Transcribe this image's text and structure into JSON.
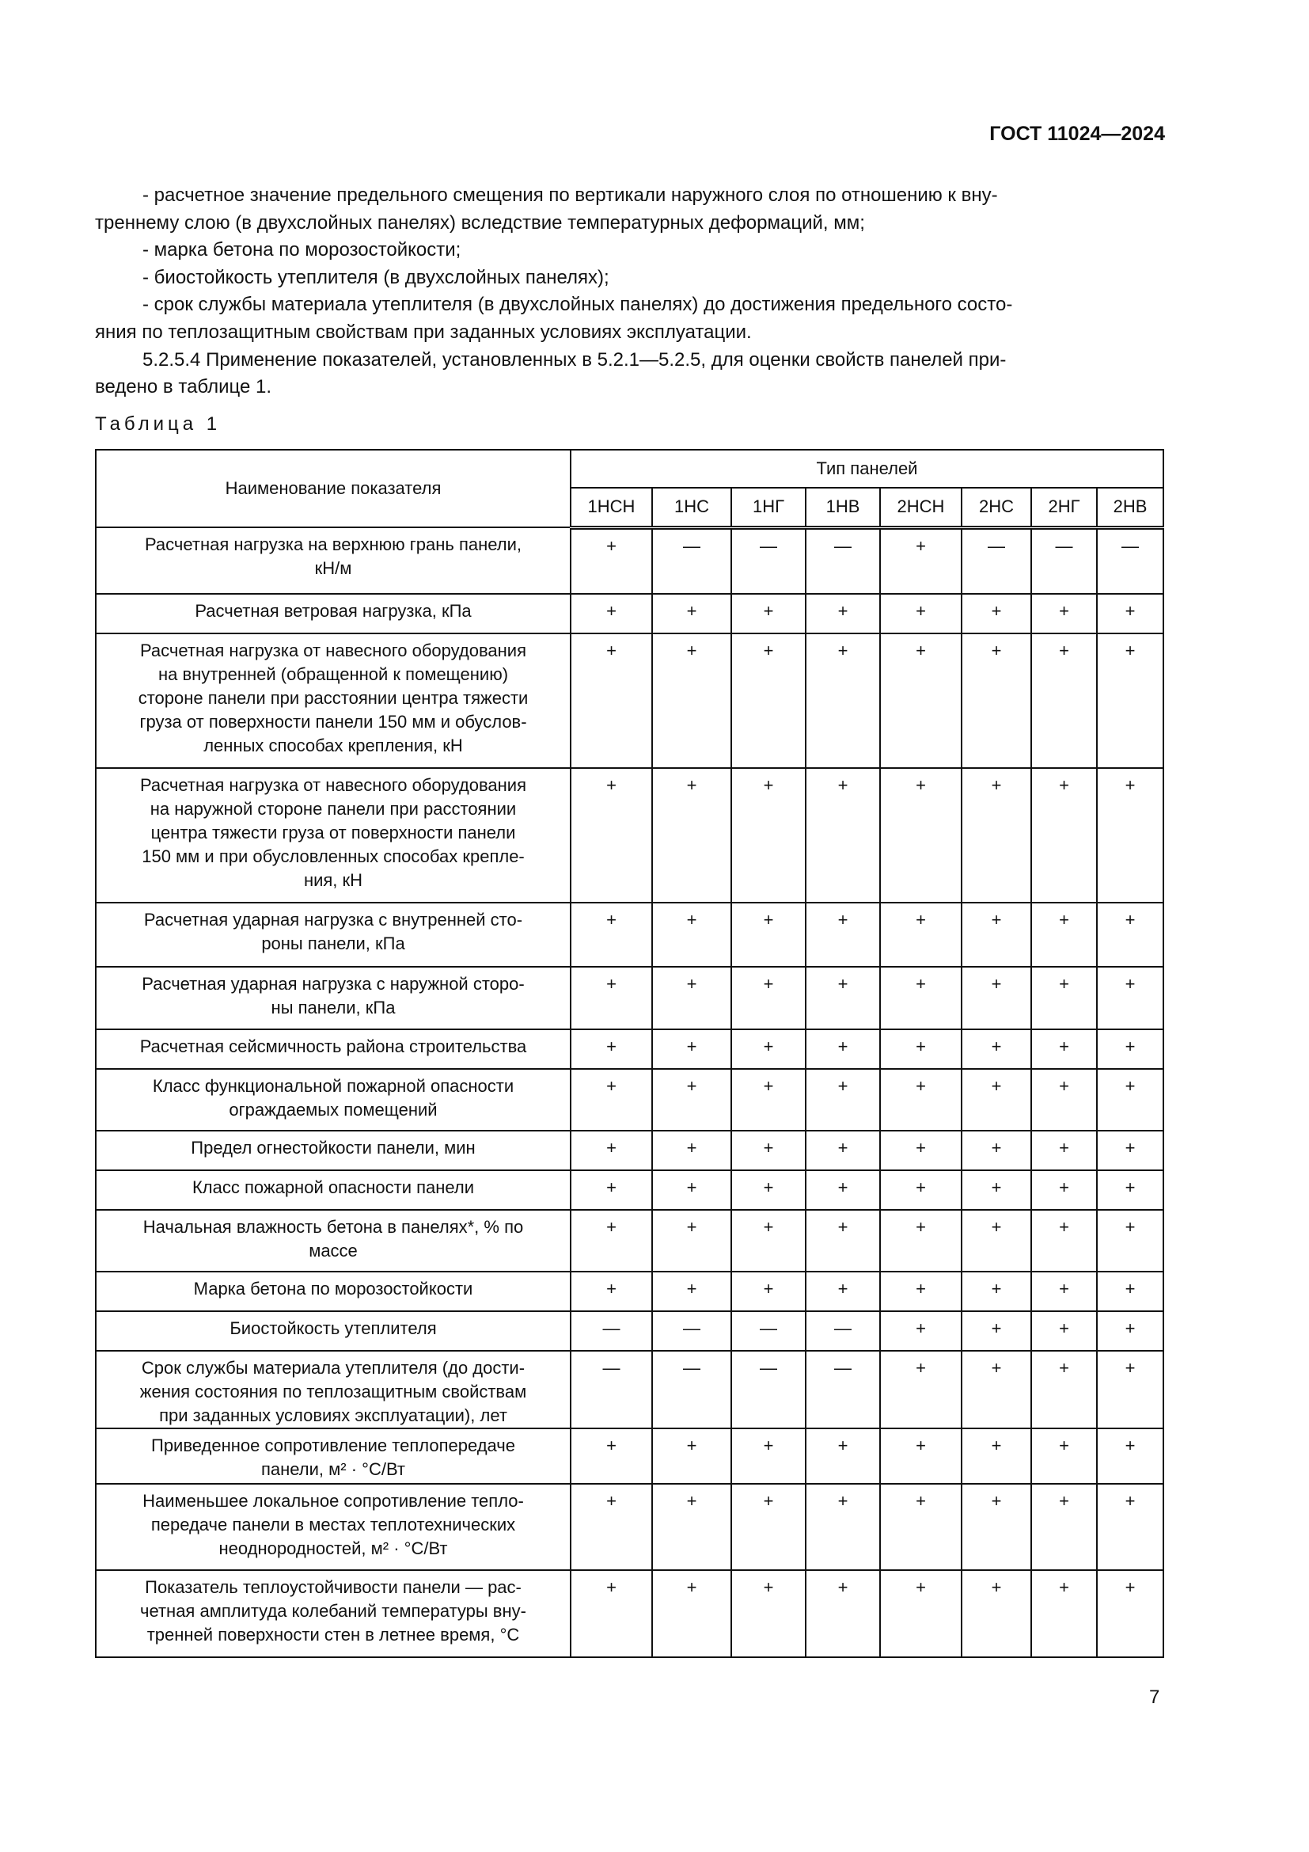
{
  "header": {
    "doc_id": "ГОСТ 11024—2024"
  },
  "paragraphs": [
    "- расчетное значение предельного смещения по вертикали наружного слоя по отношению к вну-\nтреннему слою (в двухслойных панелях) вследствие температурных деформаций, мм;",
    "- марка бетона по морозостойкости;",
    "- биостойкость утеплителя (в двухслойных панелях);",
    "- срок службы материала утеплителя (в двухслойных панелях) до достижения предельного состо-\nяния по теплозащитным свойствам при заданных условиях эксплуатации.",
    "5.2.5.4 Применение показателей, установленных в 5.2.1—5.2.5, для оценки свойств панелей при-\nведено в таблице 1."
  ],
  "table": {
    "caption": "Таблица 1",
    "col_header_name": "Наименование показателя",
    "col_header_group": "Тип панелей",
    "types": [
      "1НСН",
      "1НС",
      "1НГ",
      "1НВ",
      "2НСН",
      "2НС",
      "2НГ",
      "2НВ"
    ],
    "rows": [
      {
        "name": "Расчетная нагрузка на верхнюю грань панели,\nкН/м",
        "values": [
          "+",
          "—",
          "—",
          "—",
          "+",
          "—",
          "—",
          "—"
        ]
      },
      {
        "name": "Расчетная ветровая нагрузка, кПа",
        "values": [
          "+",
          "+",
          "+",
          "+",
          "+",
          "+",
          "+",
          "+"
        ]
      },
      {
        "name": "Расчетная нагрузка от навесного оборудования\nна внутренней (обращенной к помещению)\nстороне панели при расстоянии центра тяжести\nгруза от поверхности панели 150 мм и обуслов-\nленных способах крепления, кН",
        "values": [
          "+",
          "+",
          "+",
          "+",
          "+",
          "+",
          "+",
          "+"
        ]
      },
      {
        "name": "Расчетная нагрузка от навесного оборудования\nна наружной стороне панели при расстоянии\nцентра тяжести груза от поверхности панели\n150 мм и при обусловленных способах крепле-\nния, кН",
        "values": [
          "+",
          "+",
          "+",
          "+",
          "+",
          "+",
          "+",
          "+"
        ]
      },
      {
        "name": "Расчетная ударная нагрузка с внутренней сто-\nроны панели, кПа",
        "values": [
          "+",
          "+",
          "+",
          "+",
          "+",
          "+",
          "+",
          "+"
        ]
      },
      {
        "name": "Расчетная ударная нагрузка с наружной сторо-\nны панели, кПа",
        "values": [
          "+",
          "+",
          "+",
          "+",
          "+",
          "+",
          "+",
          "+"
        ]
      },
      {
        "name": "Расчетная сейсмичность района строительства",
        "values": [
          "+",
          "+",
          "+",
          "+",
          "+",
          "+",
          "+",
          "+"
        ]
      },
      {
        "name": "Класс функциональной пожарной опасности\nограждаемых помещений",
        "values": [
          "+",
          "+",
          "+",
          "+",
          "+",
          "+",
          "+",
          "+"
        ]
      },
      {
        "name": "Предел огнестойкости панели, мин",
        "values": [
          "+",
          "+",
          "+",
          "+",
          "+",
          "+",
          "+",
          "+"
        ]
      },
      {
        "name": "Класс пожарной опасности панели",
        "values": [
          "+",
          "+",
          "+",
          "+",
          "+",
          "+",
          "+",
          "+"
        ]
      },
      {
        "name": "Начальная влажность бетона в панелях*, % по\nмассе",
        "values": [
          "+",
          "+",
          "+",
          "+",
          "+",
          "+",
          "+",
          "+"
        ]
      },
      {
        "name": "Марка бетона по морозостойкости",
        "values": [
          "+",
          "+",
          "+",
          "+",
          "+",
          "+",
          "+",
          "+"
        ]
      },
      {
        "name": "Биостойкость утеплителя",
        "values": [
          "—",
          "—",
          "—",
          "—",
          "+",
          "+",
          "+",
          "+"
        ]
      },
      {
        "name": "Срок службы материала утеплителя (до дости-\nжения состояния по теплозащитным свойствам\nпри заданных условиях эксплуатации), лет",
        "values": [
          "—",
          "—",
          "—",
          "—",
          "+",
          "+",
          "+",
          "+"
        ]
      },
      {
        "name": "Приведенное сопротивление теплопередаче\nпанели, м² · °С/Вт",
        "values": [
          "+",
          "+",
          "+",
          "+",
          "+",
          "+",
          "+",
          "+"
        ]
      },
      {
        "name": "Наименьшее локальное сопротивление тепло-\nпередаче панели в местах теплотехнических\nнеоднородностей, м² · °С/Вт",
        "values": [
          "+",
          "+",
          "+",
          "+",
          "+",
          "+",
          "+",
          "+"
        ]
      },
      {
        "name": "Показатель теплоустойчивости панели — рас-\nчетная амплитуда колебаний температуры вну-\nтренней поверхности стен в летнее время, °С",
        "values": [
          "+",
          "+",
          "+",
          "+",
          "+",
          "+",
          "+",
          "+"
        ]
      }
    ]
  },
  "page_number": "7"
}
